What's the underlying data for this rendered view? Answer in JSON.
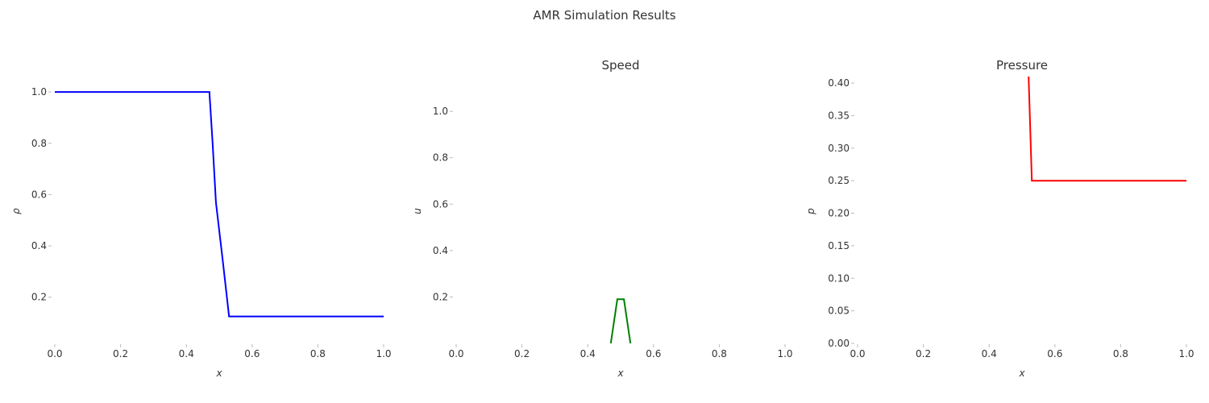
{
  "figure": {
    "title": "AMR Simulation Results"
  },
  "chart_data": [
    {
      "type": "line",
      "title": "",
      "xlabel": "x",
      "ylabel": "ρ",
      "xlim": [
        0.0,
        1.0
      ],
      "ylim": [
        0.02,
        1.06
      ],
      "xticks": [
        "0.0",
        "0.2",
        "0.4",
        "0.6",
        "0.8",
        "1.0"
      ],
      "yticks": [
        "0.2",
        "0.4",
        "0.6",
        "0.8",
        "1.0"
      ],
      "grid": false,
      "series": [
        {
          "color": "#0000ff",
          "x": [
            0.0,
            0.47,
            0.48,
            0.49,
            0.51,
            0.53,
            1.0
          ],
          "y": [
            1.0,
            1.0,
            0.8,
            0.57,
            0.35,
            0.125,
            0.125
          ]
        }
      ]
    },
    {
      "type": "line",
      "title": "Speed",
      "xlabel": "x",
      "ylabel": "u",
      "xlim": [
        0.0,
        1.0
      ],
      "ylim": [
        0.0,
        1.15
      ],
      "xticks": [
        "0.0",
        "0.2",
        "0.4",
        "0.6",
        "0.8",
        "1.0"
      ],
      "yticks": [
        "0.2",
        "0.4",
        "0.6",
        "0.8",
        "1.0"
      ],
      "grid": false,
      "series": [
        {
          "color": "#008000",
          "x": [
            0.47,
            0.49,
            0.51,
            0.53
          ],
          "y": [
            0.0,
            0.19,
            0.19,
            0.0
          ]
        }
      ]
    },
    {
      "type": "line",
      "title": "Pressure",
      "xlabel": "x",
      "ylabel": "p",
      "xlim": [
        0.0,
        1.0
      ],
      "ylim": [
        0.0,
        0.41
      ],
      "xticks": [
        "0.0",
        "0.2",
        "0.4",
        "0.6",
        "0.8",
        "1.0"
      ],
      "yticks": [
        "0.00",
        "0.05",
        "0.10",
        "0.15",
        "0.20",
        "0.25",
        "0.30",
        "0.35",
        "0.40"
      ],
      "grid": false,
      "series": [
        {
          "color": "#ff0000",
          "x": [
            0.52,
            0.53,
            1.0
          ],
          "y": [
            0.41,
            0.25,
            0.25
          ]
        }
      ]
    }
  ]
}
